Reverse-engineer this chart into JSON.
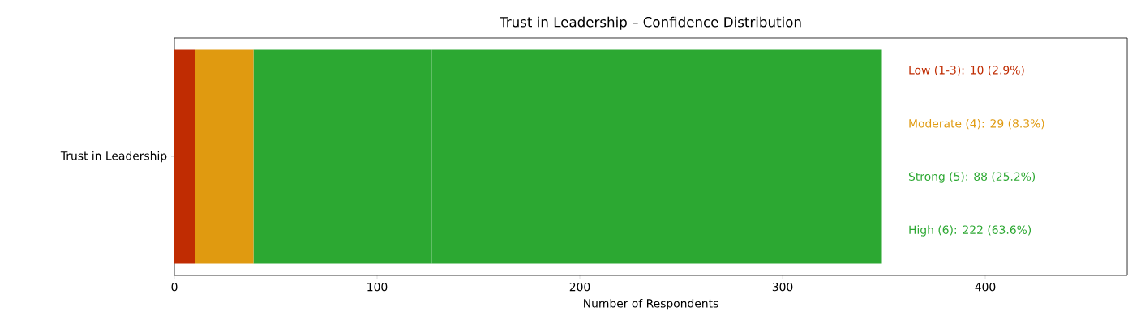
{
  "chart_data": {
    "type": "bar",
    "orientation": "horizontal",
    "stacked": true,
    "title": "Trust in Leadership – Confidence Distribution",
    "xlabel": "Number of Respondents",
    "categories": [
      "Trust in Leadership"
    ],
    "series": [
      {
        "name": "Low (1-3): 10 (2.9%)",
        "color": "#c02c02",
        "values": [
          10
        ]
      },
      {
        "name": "Moderate (4): 29 (8.3%)",
        "color": "#e09a10",
        "values": [
          29
        ]
      },
      {
        "name": "Strong (5): 88 (25.2%)",
        "color": "#2ca832",
        "values": [
          88
        ]
      },
      {
        "name": "High (6): 222 (63.6%)",
        "color": "#2ca832",
        "values": [
          222
        ]
      }
    ],
    "xlim": [
      0,
      470
    ],
    "xticks": [
      0,
      100,
      200,
      300,
      400
    ],
    "legend": "right"
  }
}
